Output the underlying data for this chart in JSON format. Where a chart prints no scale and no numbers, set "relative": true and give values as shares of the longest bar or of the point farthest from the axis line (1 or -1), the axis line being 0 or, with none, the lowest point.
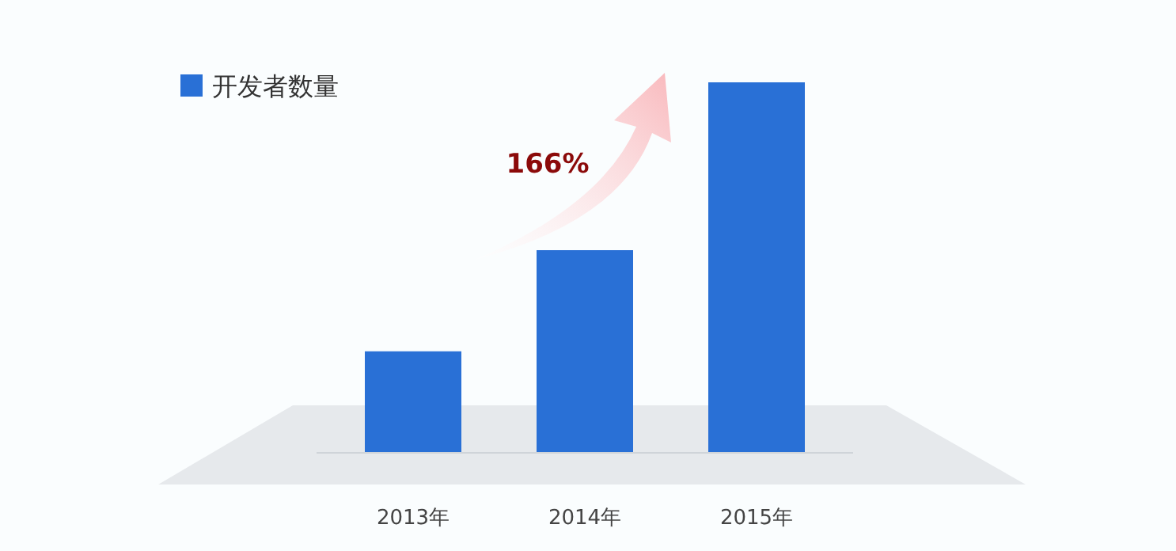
{
  "chart_data": {
    "type": "bar",
    "relative": true,
    "categories": [
      "2013年",
      "2014年",
      "2015年"
    ],
    "series": [
      {
        "name": "开发者数量",
        "color": "#2970d6",
        "values": [
          0.274,
          0.547,
          1
        ]
      }
    ],
    "legend": "top left",
    "annotations": [
      "166%"
    ]
  }
}
